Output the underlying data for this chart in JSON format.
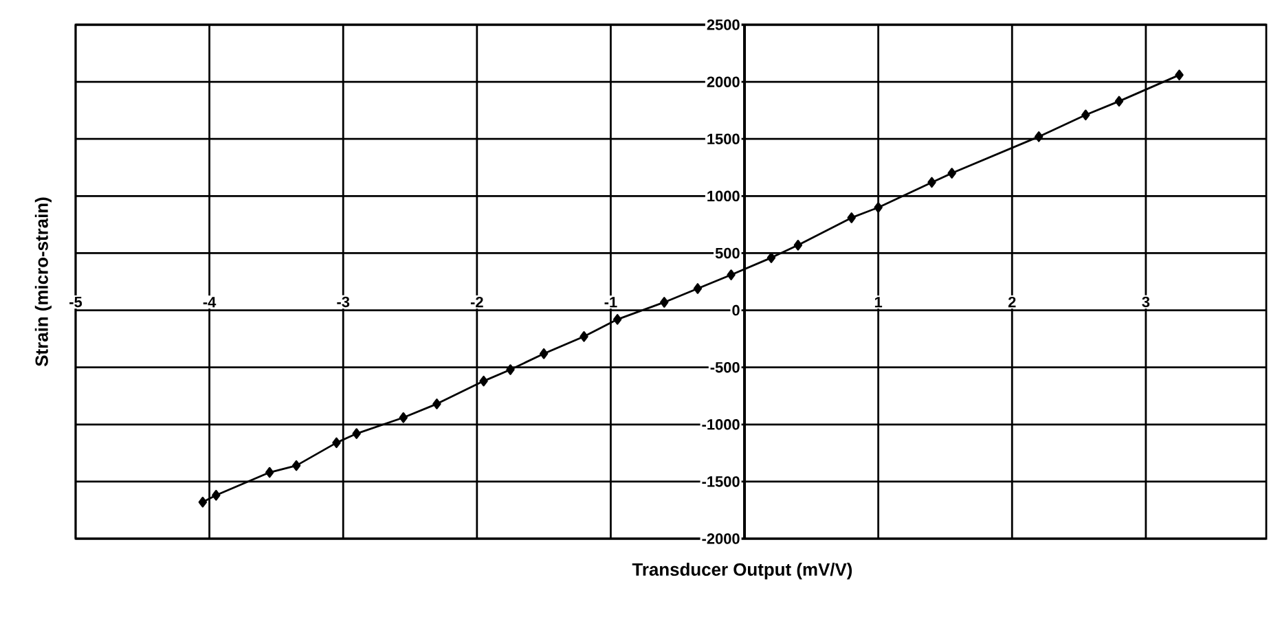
{
  "chart_data": {
    "type": "line",
    "xlabel": "Transducer Output (mV/V)",
    "ylabel": "Strain (micro-strain)",
    "x": [
      -4.05,
      -3.95,
      -3.55,
      -3.35,
      -3.05,
      -2.9,
      -2.55,
      -2.3,
      -1.95,
      -1.75,
      -1.5,
      -1.2,
      -0.95,
      -0.6,
      -0.35,
      -0.1,
      0.2,
      0.4,
      0.8,
      1.0,
      1.4,
      1.55,
      2.2,
      2.55,
      2.8,
      3.25
    ],
    "values": [
      -1680,
      -1620,
      -1420,
      -1360,
      -1160,
      -1080,
      -940,
      -820,
      -620,
      -520,
      -380,
      -230,
      -80,
      70,
      190,
      310,
      460,
      570,
      810,
      900,
      1120,
      1200,
      1520,
      1710,
      1830,
      2060
    ],
    "color": "#000000",
    "marker": "diamond",
    "line_style": "solid",
    "grid": true,
    "xlim": [
      -5,
      3.9
    ],
    "ylim": [
      -2000,
      2500
    ],
    "xticks": [
      -5,
      -4,
      -3,
      -2,
      -1,
      {
        "value": 0,
        "label": null
      },
      1,
      2,
      3
    ],
    "yticks": [
      -2000,
      -1500,
      -1000,
      -500,
      0,
      500,
      1000,
      1500,
      2000,
      2500
    ]
  }
}
